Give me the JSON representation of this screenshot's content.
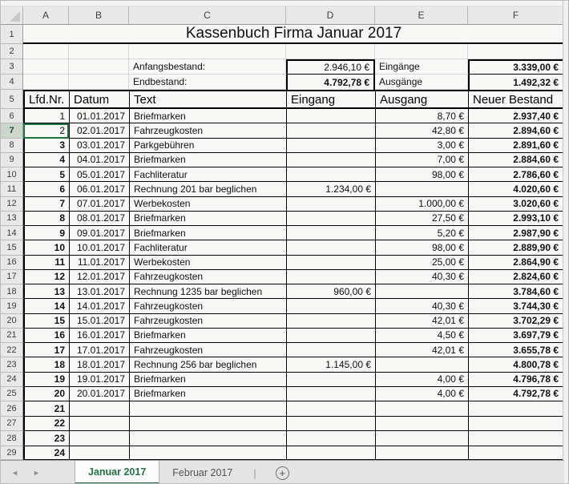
{
  "title": "Kassenbuch Firma Januar 2017",
  "colors": {
    "excel_green": "#217346",
    "chrome_bg": "#e8e8e8",
    "grid_line": "#d8d8d8",
    "cell_border": "#000000"
  },
  "grid": {
    "columns": [
      "A",
      "B",
      "C",
      "D",
      "E",
      "F"
    ],
    "row_numbers": [
      1,
      2,
      3,
      4,
      5,
      6,
      7,
      8,
      9,
      10,
      11,
      12,
      13,
      14,
      15,
      16,
      17,
      18,
      19,
      20,
      21,
      22,
      23,
      24,
      25,
      26,
      27,
      28,
      29
    ]
  },
  "selection": {
    "active_cell": "A7",
    "row_number": 7
  },
  "summary": {
    "anfangsbestand_label": "Anfangsbestand:",
    "anfangsbestand_value": "2.946,10 €",
    "endbestand_label": "Endbestand:",
    "endbestand_value": "4.792,78 €",
    "eingaenge_label": "Eingänge",
    "eingaenge_value": "3.339,00 €",
    "ausgaenge_label": "Ausgänge",
    "ausgaenge_value": "1.492,32 €"
  },
  "table": {
    "headers": [
      "Lfd.Nr.",
      "Datum",
      "Text",
      "Eingang",
      "Ausgang",
      "Neuer Bestand"
    ],
    "rows": [
      {
        "nr": "1",
        "nr_bold": false,
        "datum": "01.01.2017",
        "text": "Briefmarken",
        "eingang": "",
        "ausgang": "8,70 €",
        "bestand": "2.937,40 €"
      },
      {
        "nr": "2",
        "nr_bold": false,
        "datum": "02.01.2017",
        "text": "Fahrzeugkosten",
        "eingang": "",
        "ausgang": "42,80 €",
        "bestand": "2.894,60 €"
      },
      {
        "nr": "3",
        "nr_bold": true,
        "datum": "03.01.2017",
        "text": "Parkgebühren",
        "eingang": "",
        "ausgang": "3,00 €",
        "bestand": "2.891,60 €"
      },
      {
        "nr": "4",
        "nr_bold": true,
        "datum": "04.01.2017",
        "text": "Briefmarken",
        "eingang": "",
        "ausgang": "7,00 €",
        "bestand": "2.884,60 €"
      },
      {
        "nr": "5",
        "nr_bold": true,
        "datum": "05.01.2017",
        "text": "Fachliteratur",
        "eingang": "",
        "ausgang": "98,00 €",
        "bestand": "2.786,60 €"
      },
      {
        "nr": "6",
        "nr_bold": true,
        "datum": "06.01.2017",
        "text": "Rechnung 201 bar beglichen",
        "eingang": "1.234,00 €",
        "ausgang": "",
        "bestand": "4.020,60 €"
      },
      {
        "nr": "7",
        "nr_bold": true,
        "datum": "07.01.2017",
        "text": "Werbekosten",
        "eingang": "",
        "ausgang": "1.000,00 €",
        "bestand": "3.020,60 €"
      },
      {
        "nr": "8",
        "nr_bold": true,
        "datum": "08.01.2017",
        "text": "Briefmarken",
        "eingang": "",
        "ausgang": "27,50 €",
        "bestand": "2.993,10 €"
      },
      {
        "nr": "9",
        "nr_bold": true,
        "datum": "09.01.2017",
        "text": "Briefmarken",
        "eingang": "",
        "ausgang": "5,20 €",
        "bestand": "2.987,90 €"
      },
      {
        "nr": "10",
        "nr_bold": true,
        "datum": "10.01.2017",
        "text": "Fachliteratur",
        "eingang": "",
        "ausgang": "98,00 €",
        "bestand": "2.889,90 €"
      },
      {
        "nr": "11",
        "nr_bold": true,
        "datum": "11.01.2017",
        "text": "Werbekosten",
        "eingang": "",
        "ausgang": "25,00 €",
        "bestand": "2.864,90 €"
      },
      {
        "nr": "12",
        "nr_bold": true,
        "datum": "12.01.2017",
        "text": "Fahrzeugkosten",
        "eingang": "",
        "ausgang": "40,30 €",
        "bestand": "2.824,60 €"
      },
      {
        "nr": "13",
        "nr_bold": true,
        "datum": "13.01.2017",
        "text": "Rechnung 1235 bar beglichen",
        "eingang": "960,00 €",
        "ausgang": "",
        "bestand": "3.784,60 €"
      },
      {
        "nr": "14",
        "nr_bold": true,
        "datum": "14.01.2017",
        "text": "Fahrzeugkosten",
        "eingang": "",
        "ausgang": "40,30 €",
        "bestand": "3.744,30 €"
      },
      {
        "nr": "15",
        "nr_bold": true,
        "datum": "15.01.2017",
        "text": "Fahrzeugkosten",
        "eingang": "",
        "ausgang": "42,01 €",
        "bestand": "3.702,29 €"
      },
      {
        "nr": "16",
        "nr_bold": true,
        "datum": "16.01.2017",
        "text": "Briefmarken",
        "eingang": "",
        "ausgang": "4,50 €",
        "bestand": "3.697,79 €"
      },
      {
        "nr": "17",
        "nr_bold": true,
        "datum": "17.01.2017",
        "text": "Fahrzeugkosten",
        "eingang": "",
        "ausgang": "42,01 €",
        "bestand": "3.655,78 €"
      },
      {
        "nr": "18",
        "nr_bold": true,
        "datum": "18.01.2017",
        "text": "Rechnung 256 bar beglichen",
        "eingang": "1.145,00 €",
        "ausgang": "",
        "bestand": "4.800,78 €"
      },
      {
        "nr": "19",
        "nr_bold": true,
        "datum": "19.01.2017",
        "text": "Briefmarken",
        "eingang": "",
        "ausgang": "4,00 €",
        "bestand": "4.796,78 €"
      },
      {
        "nr": "20",
        "nr_bold": true,
        "datum": "20.01.2017",
        "text": "Briefmarken",
        "eingang": "",
        "ausgang": "4,00 €",
        "bestand": "4.792,78 €"
      },
      {
        "nr": "21",
        "nr_bold": true,
        "datum": "",
        "text": "",
        "eingang": "",
        "ausgang": "",
        "bestand": ""
      },
      {
        "nr": "22",
        "nr_bold": true,
        "datum": "",
        "text": "",
        "eingang": "",
        "ausgang": "",
        "bestand": ""
      },
      {
        "nr": "23",
        "nr_bold": true,
        "datum": "",
        "text": "",
        "eingang": "",
        "ausgang": "",
        "bestand": ""
      },
      {
        "nr": "24",
        "nr_bold": true,
        "datum": "",
        "text": "",
        "eingang": "",
        "ausgang": "",
        "bestand": ""
      }
    ]
  },
  "tabs": [
    {
      "label": "Januar 2017",
      "active": true
    },
    {
      "label": "Februar 2017",
      "active": false
    }
  ],
  "tabbar": {
    "add_sheet_icon": "+",
    "prev_arrow": "◄",
    "next_arrow": "►",
    "separator": "|"
  }
}
